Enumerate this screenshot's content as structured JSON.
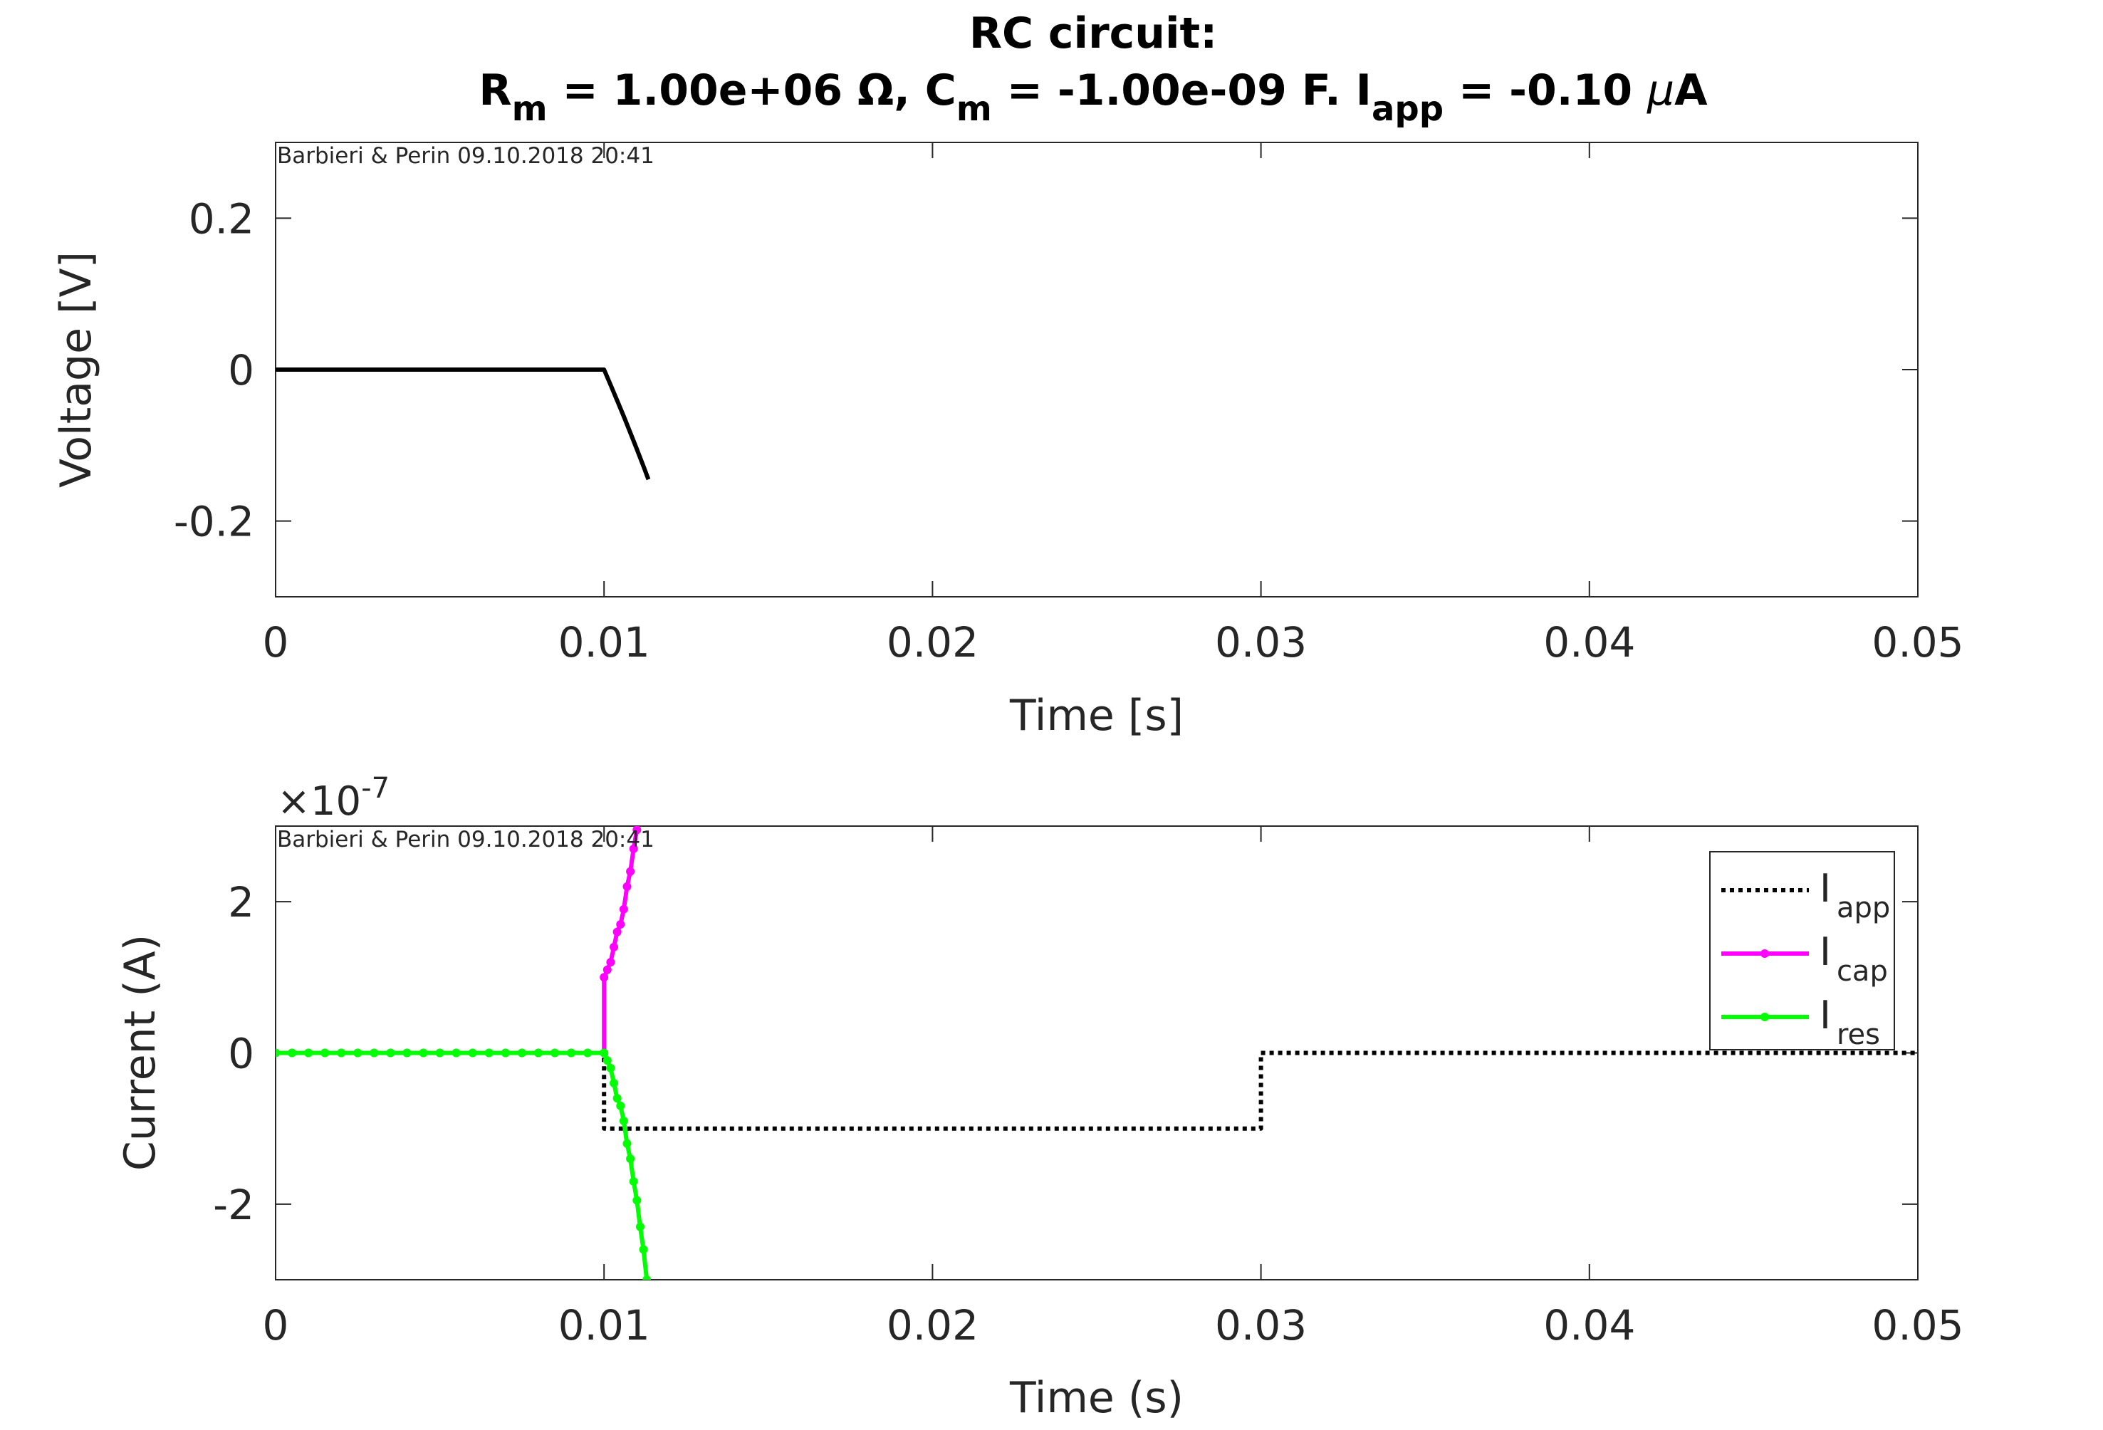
{
  "chart_data": [
    {
      "type": "line",
      "title_line1": "RC circuit:",
      "title_line2": [
        {
          "t": "R",
          "sub": false
        },
        {
          "t": "m",
          "sub": true
        },
        {
          "t": " = 1.00e+06 Ω, C",
          "sub": false
        },
        {
          "t": "m",
          "sub": true
        },
        {
          "t": " = -1.00e-09 F. I",
          "sub": false
        },
        {
          "t": "app",
          "sub": true
        },
        {
          "t": " = -0.10 ",
          "sub": false
        },
        {
          "t": "μ",
          "sub": false,
          "italic": true
        },
        {
          "t": "A",
          "sub": false
        }
      ],
      "xlabel": "Time [s]",
      "ylabel": "Voltage [V]",
      "xlim": [
        0,
        0.05
      ],
      "ylim": [
        -0.3,
        0.3
      ],
      "xticks": [
        0,
        0.01,
        0.02,
        0.03,
        0.04,
        0.05
      ],
      "xtick_labels": [
        "0",
        "0.01",
        "0.02",
        "0.03",
        "0.04",
        "0.05"
      ],
      "yticks": [
        -0.2,
        0,
        0.2
      ],
      "ytick_labels": [
        "-0.2",
        "0",
        "0.2"
      ],
      "watermark": "Barbieri & Perin 09.10.2018 20:41",
      "grid": false,
      "series": [
        {
          "color": "#000000",
          "x": [
            0,
            0.01,
            0.0102,
            0.0104,
            0.0106,
            0.0108,
            0.011,
            0.0112,
            0.01135
          ],
          "y": [
            0,
            0,
            -0.0202,
            -0.0408,
            -0.0618,
            -0.0833,
            -0.1052,
            -0.1275,
            -0.145
          ]
        }
      ]
    },
    {
      "type": "line",
      "xlabel": "Time (s)",
      "ylabel": "Current (A)",
      "xlim": [
        0,
        0.05
      ],
      "ylim": [
        -3e-07,
        3e-07
      ],
      "exponent_label": "×10",
      "exponent_power": "-7",
      "xticks": [
        0,
        0.01,
        0.02,
        0.03,
        0.04,
        0.05
      ],
      "xtick_labels": [
        "0",
        "0.01",
        "0.02",
        "0.03",
        "0.04",
        "0.05"
      ],
      "yticks": [
        -2e-07,
        0,
        2e-07
      ],
      "ytick_labels": [
        "-2",
        "0",
        "2"
      ],
      "watermark": "Barbieri & Perin 09.10.2018 20:41",
      "legend_position": "top-right",
      "grid": false,
      "series": [
        {
          "legend_main": "I",
          "legend_sub": "app",
          "color": "#000000",
          "style": "dotted",
          "x": [
            0,
            0.01,
            0.01,
            0.03,
            0.03,
            0.05
          ],
          "y": [
            0,
            0,
            -1e-07,
            -1e-07,
            0,
            0
          ]
        },
        {
          "legend_main": "I",
          "legend_sub": "cap",
          "color": "#ff00ff",
          "style": "solid-markers",
          "x": [
            0,
            0.0005,
            0.001,
            0.0015,
            0.002,
            0.0025,
            0.003,
            0.0035,
            0.004,
            0.0045,
            0.005,
            0.0055,
            0.006,
            0.0065,
            0.007,
            0.0075,
            0.008,
            0.0085,
            0.009,
            0.0095,
            0.01,
            0.01,
            0.0101,
            0.0102,
            0.0103,
            0.0104,
            0.0105,
            0.0106,
            0.0107,
            0.0108,
            0.0109,
            0.011
          ],
          "y": [
            0,
            0,
            0,
            0,
            0,
            0,
            0,
            0,
            0,
            0,
            0,
            0,
            0,
            0,
            0,
            0,
            0,
            0,
            0,
            0,
            0,
            1e-07,
            1.1e-07,
            1.2e-07,
            1.4e-07,
            1.6e-07,
            1.7e-07,
            1.9e-07,
            2.2e-07,
            2.4e-07,
            2.7e-07,
            2.95e-07
          ]
        },
        {
          "legend_main": "I",
          "legend_sub": "res",
          "color": "#00ff00",
          "style": "solid-markers",
          "x": [
            0,
            0.0005,
            0.001,
            0.0015,
            0.002,
            0.0025,
            0.003,
            0.0035,
            0.004,
            0.0045,
            0.005,
            0.0055,
            0.006,
            0.0065,
            0.007,
            0.0075,
            0.008,
            0.0085,
            0.009,
            0.0095,
            0.01,
            0.0101,
            0.0102,
            0.0103,
            0.0104,
            0.0105,
            0.0106,
            0.0107,
            0.0108,
            0.0109,
            0.011,
            0.0111,
            0.0112,
            0.0113
          ],
          "y": [
            0,
            0,
            0,
            0,
            0,
            0,
            0,
            0,
            0,
            0,
            0,
            0,
            0,
            0,
            0,
            0,
            0,
            0,
            0,
            0,
            0,
            -1e-08,
            -2e-08,
            -4e-08,
            -6e-08,
            -7e-08,
            -9e-08,
            -1.2e-07,
            -1.4e-07,
            -1.7e-07,
            -1.95e-07,
            -2.3e-07,
            -2.6e-07,
            -3e-07
          ]
        }
      ]
    }
  ]
}
